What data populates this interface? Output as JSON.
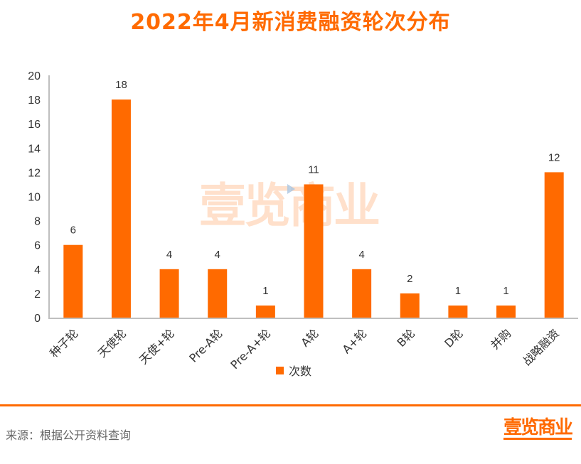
{
  "title": "2022年4月新消费融资轮次分布",
  "chart_data": {
    "type": "bar",
    "title": "2022年4月新消费融资轮次分布",
    "categories": [
      "种子轮",
      "天使轮",
      "天使+轮",
      "Pre-A轮",
      "Pre-A+轮",
      "A轮",
      "A+轮",
      "B轮",
      "D轮",
      "并购",
      "战略融资"
    ],
    "series": [
      {
        "name": "次数",
        "values": [
          6,
          18,
          4,
          4,
          1,
          11,
          4,
          2,
          1,
          1,
          12
        ],
        "color": "#ff6a00"
      }
    ],
    "yticks": [
      0,
      2,
      4,
      6,
      8,
      10,
      12,
      14,
      16,
      18,
      20
    ],
    "ylim": [
      0,
      20
    ],
    "xlabel": "",
    "ylabel": "",
    "grid": false,
    "legend": "bottom"
  },
  "watermark": "壹览商业",
  "footer": {
    "source": "来源：根据公开资料查询",
    "logo": "壹览商业"
  },
  "colors": {
    "accent": "#ff6a00",
    "axis": "#bfbfbf",
    "text": "#333333"
  }
}
